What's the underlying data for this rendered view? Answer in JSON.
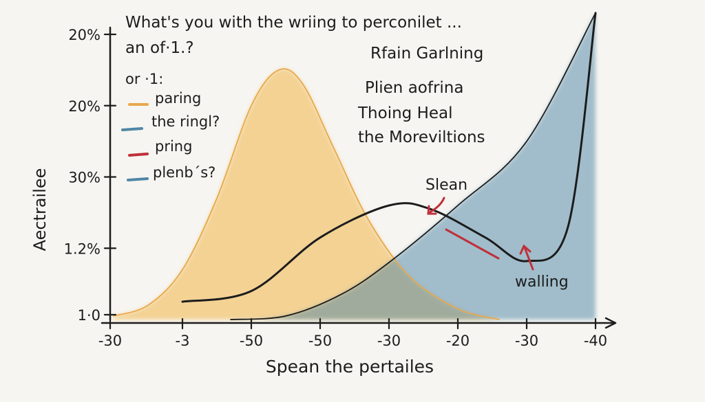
{
  "chart_data": {
    "type": "area",
    "title_lines": [
      "What's you with the wriing to perconilet ...",
      "an of·1.?"
    ],
    "legend_heading": "or ·1:",
    "legend_placement": "top-left",
    "legend": [
      {
        "label": "paring",
        "color": "#e9a84a"
      },
      {
        "label": "the ringl?",
        "color": "#4f86a6"
      },
      {
        "label": "pring",
        "color": "#c0303a"
      },
      {
        "label": "plenb´s?",
        "color": "#4f86a6"
      }
    ],
    "side_notes": [
      "Rfain Garlning",
      "Plien aofrina",
      "Thoing Heal",
      "the Moreviltions"
    ],
    "ylabel": "Aectrailee",
    "xlabel": "Spean the pertailes",
    "y_tick_labels": [
      "1·0",
      "1.2%",
      "30%",
      "20%",
      "20%"
    ],
    "x_tick_labels": [
      "-30",
      "-3",
      "-50",
      "-50",
      "-30",
      "-20",
      "-30",
      "-40"
    ],
    "x_index_range": [
      0,
      7
    ],
    "y_index_range": [
      0,
      4
    ],
    "grid": false,
    "annotations": [
      {
        "text": "Slean",
        "arrow_color": "#c0303a"
      },
      {
        "text": "walling",
        "arrow_color": "#c0303a"
      }
    ],
    "series": [
      {
        "color": "#e9a84a",
        "fill": "#f2bd5c",
        "style": "area",
        "points": [
          [
            0,
            0.05
          ],
          [
            0.5,
            0.2
          ],
          [
            1,
            0.7
          ],
          [
            1.5,
            1.7
          ],
          [
            2,
            3.0
          ],
          [
            2.4,
            3.5
          ],
          [
            2.75,
            3.3
          ],
          [
            3.2,
            2.4
          ],
          [
            3.7,
            1.4
          ],
          [
            4.3,
            0.6
          ],
          [
            5,
            0.15
          ],
          [
            5.6,
            0.0
          ]
        ]
      },
      {
        "color": "#1c1c1c",
        "fill": "#4f86a6",
        "style": "area",
        "points": [
          [
            1.7,
            0.0
          ],
          [
            2.5,
            0.05
          ],
          [
            3.3,
            0.35
          ],
          [
            4.0,
            0.8
          ],
          [
            5.0,
            1.6
          ],
          [
            6.0,
            2.5
          ],
          [
            7.0,
            4.3
          ]
        ]
      },
      {
        "color": "#1c1c1c",
        "style": "line",
        "points": [
          [
            1,
            0.25
          ],
          [
            2,
            0.4
          ],
          [
            3,
            1.15
          ],
          [
            4,
            1.6
          ],
          [
            4.6,
            1.55
          ],
          [
            5.4,
            1.15
          ],
          [
            6.0,
            0.82
          ],
          [
            6.6,
            1.3
          ],
          [
            7.0,
            4.3
          ]
        ]
      }
    ]
  }
}
